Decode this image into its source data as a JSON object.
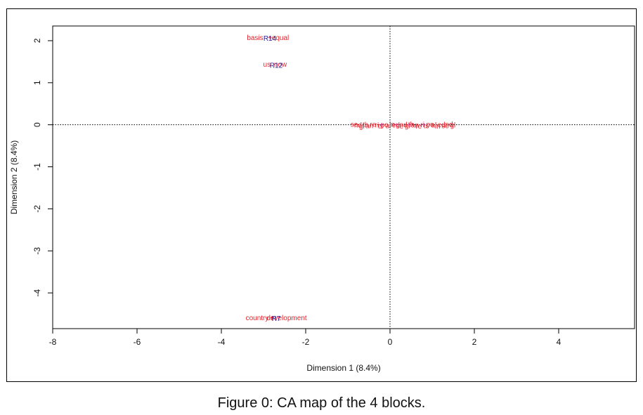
{
  "caption": "Figure 0: CA map of the 4 blocks.",
  "colors": {
    "col_points": "#e8202a",
    "row_points": "#2b1a9c",
    "magenta": "#cc22aa",
    "axis": "#000000"
  },
  "chart_data": {
    "type": "scatter",
    "title": "",
    "xlabel": "Dimension 1 (8.4%)",
    "ylabel": "Dimension 2 (8.4%)",
    "xlim": [
      -8,
      5.8
    ],
    "ylim": [
      -4.85,
      2.35
    ],
    "xticks": [
      -8,
      -6,
      -4,
      -2,
      0,
      2,
      4
    ],
    "yticks": [
      2,
      1,
      0,
      -1,
      -2,
      -3,
      -4
    ],
    "reference_lines": {
      "x": 0,
      "y": 0,
      "style": "dotted"
    },
    "labeled_points": [
      {
        "label": "basis",
        "x": -3.2,
        "y": 2.07,
        "group": "col"
      },
      {
        "label": "+",
        "x": -2.85,
        "y": 2.07,
        "group": "col"
      },
      {
        "label": "equal",
        "x": -2.6,
        "y": 2.07,
        "group": "col"
      },
      {
        "label": "R14",
        "x": -2.85,
        "y": 2.05,
        "group": "row"
      },
      {
        "label": "us",
        "x": -2.92,
        "y": 1.43,
        "group": "col"
      },
      {
        "label": "now",
        "x": -2.6,
        "y": 1.43,
        "group": "col"
      },
      {
        "label": "R12",
        "x": -2.7,
        "y": 1.41,
        "group": "row"
      },
      {
        "label": "country",
        "x": -3.15,
        "y": -4.6,
        "group": "col"
      },
      {
        "label": "+",
        "x": -2.8,
        "y": -4.6,
        "group": "col"
      },
      {
        "label": "development",
        "x": -2.45,
        "y": -4.6,
        "group": "col"
      },
      {
        "label": "R7",
        "x": -2.7,
        "y": -4.62,
        "group": "row"
      }
    ],
    "cluster": {
      "description": "dense overlapping labels along dimension 1",
      "x_range": [
        -0.85,
        1.55
      ],
      "y": 0.0
    }
  }
}
